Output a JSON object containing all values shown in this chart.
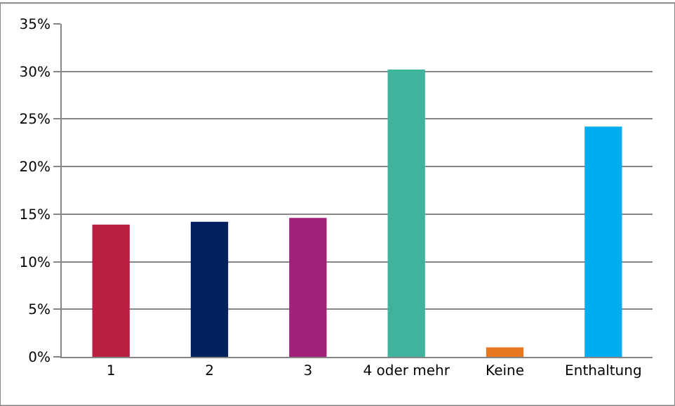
{
  "chart_data": {
    "type": "bar",
    "categories": [
      "1",
      "2",
      "3",
      "4 oder mehr",
      "Keine",
      "Enthaltung"
    ],
    "values": [
      13.9,
      14.2,
      14.6,
      30.2,
      1.0,
      24.2
    ],
    "colors": [
      "#b81f40",
      "#00215e",
      "#a0207a",
      "#3fb39c",
      "#e87722",
      "#00aeef"
    ],
    "ylim": [
      0,
      35
    ],
    "yticks": [
      {
        "value": 0,
        "label": "0%"
      },
      {
        "value": 5,
        "label": "5%"
      },
      {
        "value": 10,
        "label": "10%"
      },
      {
        "value": 15,
        "label": "15%"
      },
      {
        "value": 20,
        "label": "20%"
      },
      {
        "value": 25,
        "label": "25%"
      },
      {
        "value": 30,
        "label": "30%"
      },
      {
        "value": 35,
        "label": "35%"
      }
    ],
    "grid": "y"
  }
}
